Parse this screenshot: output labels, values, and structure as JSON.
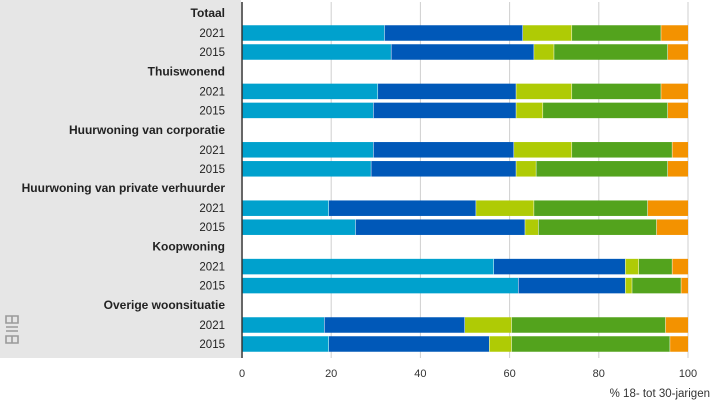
{
  "chart_data": {
    "type": "bar",
    "orientation": "horizontal",
    "stacked": true,
    "xlabel": "% 18- tot 30-jarigen",
    "xlim": [
      0,
      100
    ],
    "xticks": [
      "0",
      "20",
      "40",
      "60",
      "80",
      "100"
    ],
    "grid": true,
    "segment_colors": [
      "#00a1cd",
      "#0058b8",
      "#afcb05",
      "#53a31d",
      "#f39200"
    ],
    "groups": [
      {
        "name": "Totaal",
        "bars": [
          {
            "year": "2021",
            "values": [
              32,
              31,
              11,
              20,
              6
            ]
          },
          {
            "year": "2015",
            "values": [
              33.5,
              32,
              4.5,
              25.5,
              4.5
            ]
          }
        ]
      },
      {
        "name": "Thuiswonend",
        "bars": [
          {
            "year": "2021",
            "values": [
              30.5,
              31,
              12.5,
              20,
              6
            ]
          },
          {
            "year": "2015",
            "values": [
              29.5,
              32,
              6,
              28,
              4.5
            ]
          }
        ]
      },
      {
        "name": "Huurwoning van corporatie",
        "bars": [
          {
            "year": "2021",
            "values": [
              29.5,
              31.5,
              13,
              22.5,
              3.5
            ]
          },
          {
            "year": "2015",
            "values": [
              29,
              32.5,
              4.5,
              29.5,
              4.5
            ]
          }
        ]
      },
      {
        "name": "Huurwoning van private verhuurder",
        "bars": [
          {
            "year": "2021",
            "values": [
              19.5,
              33,
              13,
              25.5,
              9
            ]
          },
          {
            "year": "2015",
            "values": [
              25.5,
              38,
              3,
              26.5,
              7
            ]
          }
        ]
      },
      {
        "name": "Koopwoning",
        "bars": [
          {
            "year": "2021",
            "values": [
              56.5,
              29.5,
              3,
              7.5,
              3.5
            ]
          },
          {
            "year": "2015",
            "values": [
              62,
              24,
              1.5,
              11,
              1.5
            ]
          }
        ]
      },
      {
        "name": "Overige woonsituatie",
        "bars": [
          {
            "year": "2021",
            "values": [
              18.5,
              31.5,
              10.5,
              34.5,
              5
            ]
          },
          {
            "year": "2015",
            "values": [
              19.5,
              36,
              5,
              35.5,
              4
            ]
          }
        ]
      }
    ]
  }
}
